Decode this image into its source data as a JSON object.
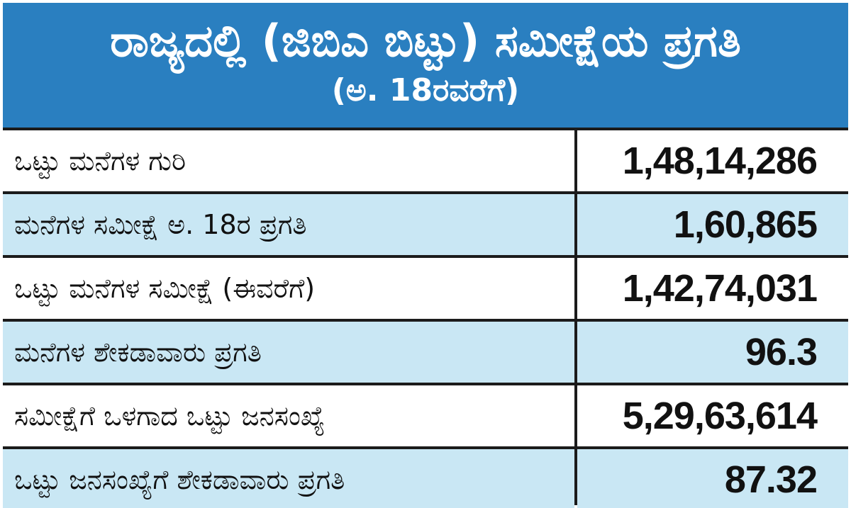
{
  "header": {
    "title": "ರಾಜ್ಯದಲ್ಲಿ (ಜಿಬಿಎ ಬಿಟ್ಟು) ಸಮೀಕ್ಷೆಯ ಪ್ರಗತಿ",
    "subtitle": "(ಅ. 18ರವರೆಗೆ)"
  },
  "colors": {
    "header_bg": "#2a7fc0",
    "row_white": "#ffffff",
    "row_blue": "#c9e7f4",
    "border": "#1b1b1b"
  },
  "table": {
    "rows": [
      {
        "label": "ಒಟ್ಟು ಮನೆಗಳ ಗುರಿ",
        "value": "1,48,14,286"
      },
      {
        "label": "ಮನೆಗಳ ಸಮೀಕ್ಷೆ ಅ. 18ರ ಪ್ರಗತಿ",
        "value": "1,60,865"
      },
      {
        "label": "ಒಟ್ಟು ಮನೆಗಳ ಸಮೀಕ್ಷೆ (ಈವರೆಗೆ)",
        "value": "1,42,74,031"
      },
      {
        "label": "ಮನೆಗಳ ಶೇಕಡಾವಾರು ಪ್ರಗತಿ",
        "value": "96.3"
      },
      {
        "label": "ಸಮೀಕ್ಷೆಗೆ ಒಳಗಾದ ಒಟ್ಟು ಜನಸಂಖ್ಯೆ",
        "value": "5,29,63,614"
      },
      {
        "label": "ಒಟ್ಟು ಜನಸಂಖ್ಯೆಗೆ ಶೇಕಡಾವಾರು ಪ್ರಗತಿ",
        "value": "87.32"
      }
    ]
  }
}
